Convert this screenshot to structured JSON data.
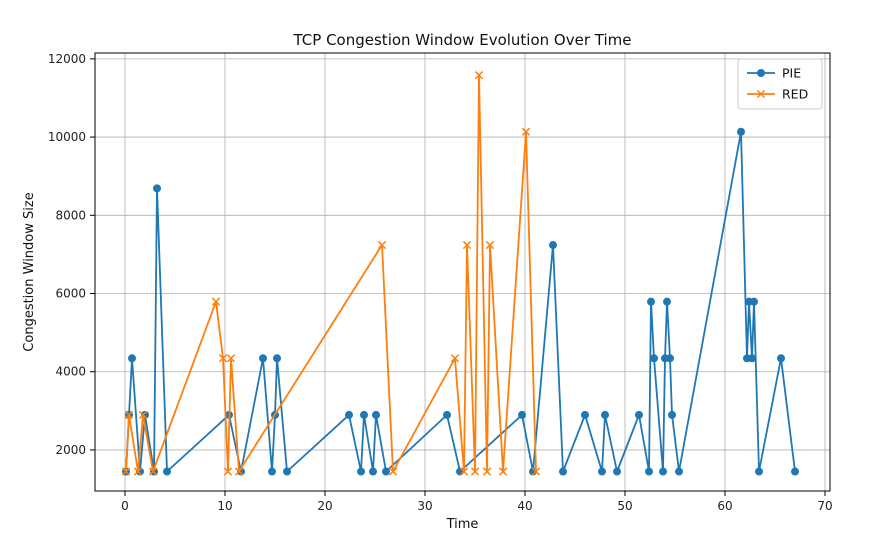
{
  "chart_data": {
    "type": "line",
    "title": "TCP Congestion Window Evolution Over Time",
    "xlabel": "Time",
    "ylabel": "Congestion Window Size",
    "xlim": [
      -3,
      70.5
    ],
    "ylim": [
      950,
      12150
    ],
    "xticks": [
      0,
      10,
      20,
      30,
      40,
      50,
      60,
      70
    ],
    "yticks": [
      2000,
      4000,
      6000,
      8000,
      10000,
      12000
    ],
    "grid": true,
    "legend_position": "top-right",
    "series": [
      {
        "name": "PIE",
        "color": "#1f77b4",
        "marker": "circle",
        "points": [
          [
            0.1,
            1448
          ],
          [
            0.4,
            2896
          ],
          [
            0.7,
            4344
          ],
          [
            1.5,
            1448
          ],
          [
            2.0,
            2896
          ],
          [
            2.9,
            1448
          ],
          [
            3.2,
            8688
          ],
          [
            4.2,
            1448
          ],
          [
            10.4,
            2896
          ],
          [
            11.6,
            1448
          ],
          [
            13.8,
            4344
          ],
          [
            14.7,
            1448
          ],
          [
            15.0,
            2896
          ],
          [
            15.2,
            4344
          ],
          [
            16.2,
            1448
          ],
          [
            22.4,
            2896
          ],
          [
            23.6,
            1448
          ],
          [
            23.9,
            2896
          ],
          [
            24.8,
            1448
          ],
          [
            25.1,
            2896
          ],
          [
            26.1,
            1448
          ],
          [
            32.2,
            2896
          ],
          [
            33.5,
            1448
          ],
          [
            39.7,
            2896
          ],
          [
            40.8,
            1448
          ],
          [
            42.8,
            7240
          ],
          [
            43.8,
            1448
          ],
          [
            46.0,
            2896
          ],
          [
            47.7,
            1448
          ],
          [
            48.0,
            2896
          ],
          [
            49.2,
            1448
          ],
          [
            51.4,
            2896
          ],
          [
            52.4,
            1448
          ],
          [
            52.6,
            5792
          ],
          [
            52.9,
            4344
          ],
          [
            53.8,
            1448
          ],
          [
            54.0,
            4344
          ],
          [
            54.2,
            5792
          ],
          [
            54.5,
            4344
          ],
          [
            54.7,
            2896
          ],
          [
            55.4,
            1448
          ],
          [
            61.6,
            10136
          ],
          [
            62.2,
            4344
          ],
          [
            62.4,
            5792
          ],
          [
            62.7,
            4344
          ],
          [
            62.9,
            5792
          ],
          [
            63.4,
            1448
          ],
          [
            65.6,
            4344
          ],
          [
            67.0,
            1448
          ]
        ]
      },
      {
        "name": "RED",
        "color": "#ff7f0e",
        "marker": "x",
        "points": [
          [
            0.1,
            1448
          ],
          [
            0.4,
            2896
          ],
          [
            1.3,
            1448
          ],
          [
            1.8,
            2896
          ],
          [
            2.8,
            1448
          ],
          [
            9.1,
            5792
          ],
          [
            9.8,
            4344
          ],
          [
            10.3,
            1448
          ],
          [
            10.6,
            4344
          ],
          [
            11.4,
            1448
          ],
          [
            25.7,
            7240
          ],
          [
            26.8,
            1448
          ],
          [
            33.0,
            4344
          ],
          [
            33.9,
            1448
          ],
          [
            34.2,
            7240
          ],
          [
            35.0,
            1448
          ],
          [
            35.4,
            11584
          ],
          [
            36.2,
            1448
          ],
          [
            36.5,
            7240
          ],
          [
            37.8,
            1448
          ],
          [
            40.1,
            10136
          ],
          [
            41.1,
            1448
          ]
        ]
      }
    ]
  }
}
